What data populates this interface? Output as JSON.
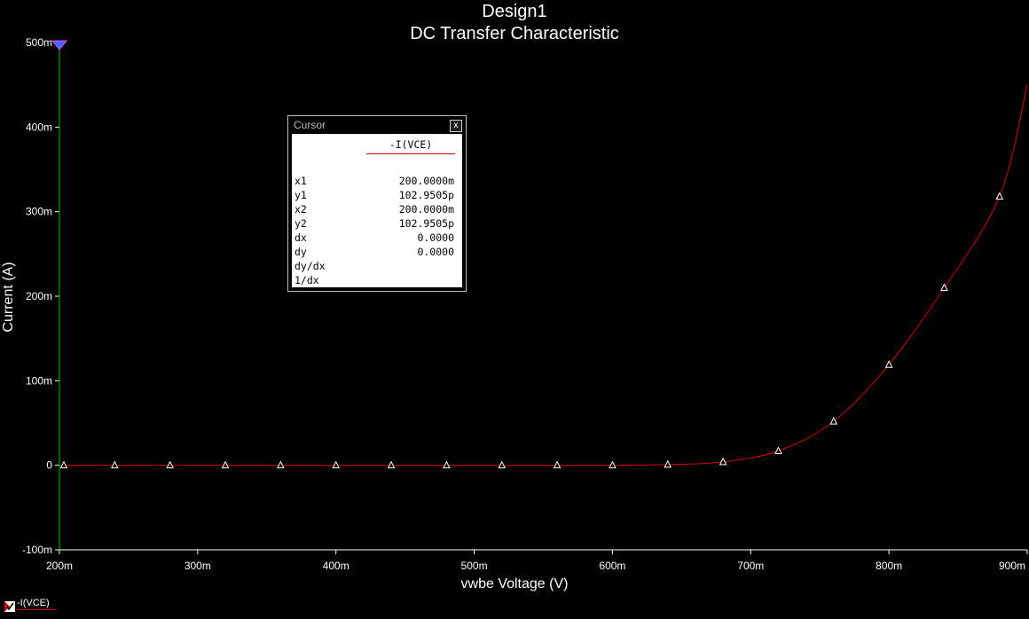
{
  "chart_data": {
    "type": "line",
    "title": "Design1",
    "subtitle": "DC Transfer Characteristic",
    "xlabel": "vwbe Voltage (V)",
    "ylabel": "Current (A)",
    "xlim": [
      0.2,
      0.9
    ],
    "ylim": [
      -0.1,
      0.5
    ],
    "x_ticks": [
      0.2,
      0.3,
      0.4,
      0.5,
      0.6,
      0.7,
      0.8,
      0.9
    ],
    "x_tick_labels": [
      "200m",
      "300m",
      "400m",
      "500m",
      "600m",
      "700m",
      "800m",
      "900m"
    ],
    "y_ticks": [
      -0.1,
      0,
      0.1,
      0.2,
      0.3,
      0.4,
      0.5
    ],
    "y_tick_labels": [
      "-100m",
      "0",
      "100m",
      "200m",
      "300m",
      "400m",
      "500m"
    ],
    "grid": false,
    "series": [
      {
        "name": "-I(VCE)",
        "color": "#e00000",
        "x": [
          0.2,
          0.24,
          0.28,
          0.32,
          0.36,
          0.4,
          0.44,
          0.48,
          0.52,
          0.56,
          0.6,
          0.64,
          0.68,
          0.72,
          0.76,
          0.8,
          0.84,
          0.88,
          0.9
        ],
        "values": [
          0,
          0,
          0,
          0,
          0,
          0,
          0,
          0,
          0,
          0,
          0,
          0.0008,
          0.004,
          0.017,
          0.052,
          0.119,
          0.21,
          0.318,
          0.45
        ]
      }
    ],
    "markers_x": [
      0.2,
      0.24,
      0.28,
      0.32,
      0.36,
      0.4,
      0.44,
      0.48,
      0.52,
      0.56,
      0.6,
      0.64,
      0.68,
      0.72,
      0.76,
      0.8,
      0.84,
      0.88
    ],
    "cursor_x": 0.2
  },
  "cursor_window": {
    "title": "Cursor",
    "close_label": "x",
    "column": "-I(VCE)",
    "rows": [
      {
        "k": "x1",
        "v": "200.0000m"
      },
      {
        "k": "y1",
        "v": "102.9505p"
      },
      {
        "k": "x2",
        "v": "200.0000m"
      },
      {
        "k": "y2",
        "v": "102.9505p"
      },
      {
        "k": "dx",
        "v": "0.0000"
      },
      {
        "k": "dy",
        "v": "0.0000"
      },
      {
        "k": "dy/dx",
        "v": ""
      },
      {
        "k": "1/dx",
        "v": ""
      }
    ]
  },
  "legend": {
    "label": "-I(VCE)"
  },
  "colors": {
    "trace": "#e00000",
    "cursor": "#00c000",
    "axis": "#ffffff"
  }
}
